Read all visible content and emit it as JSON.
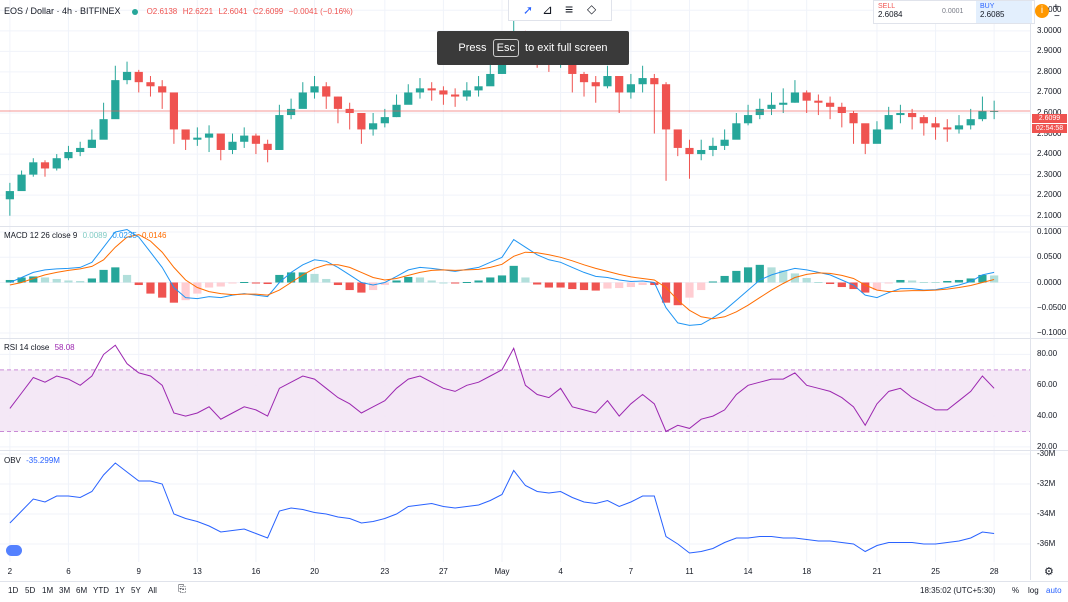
{
  "header": {
    "symbol": "EOS / Dollar · 4h · BITFINEX",
    "ohlc_o": "O2.6138",
    "ohlc_h": "H2.6221",
    "ohlc_l": "L2.6041",
    "ohlc_c": "C2.6099",
    "change": "−0.0041 (−0.16%)"
  },
  "trade_panel": {
    "sell_label": "SELL",
    "sell_price": "2.6084",
    "spread": "0.0001",
    "buy_label": "BUY",
    "buy_price": "2.6085"
  },
  "toast": {
    "before": "Press",
    "key": "Esc",
    "after": "to exit full screen"
  },
  "price_tag": {
    "price": "2.6099",
    "countdown": "02:54:58"
  },
  "indicators": {
    "macd": {
      "name": "MACD 12 26 close 9",
      "v1": "0.0089",
      "v2": "0.0235",
      "v3": "0.0146"
    },
    "rsi": {
      "name": "RSI 14 close",
      "value": "58.08"
    },
    "obv": {
      "name": "OBV",
      "value": "-35.299M"
    }
  },
  "bottom": {
    "timeframes": [
      "1D",
      "5D",
      "1M",
      "3M",
      "6M",
      "YTD",
      "1Y",
      "5Y",
      "All"
    ],
    "clock": "18:35:02 (UTC+5:30)",
    "percent": "%",
    "log": "log",
    "auto": "auto"
  },
  "colors": {
    "up": "#26a69a",
    "down": "#ef5350",
    "macd": "#2196f3",
    "signal": "#ff6d00",
    "rsi": "#9c27b0",
    "obv": "#2962ff"
  },
  "chart_data": [
    {
      "type": "candlestick",
      "title": "EOS / Dollar",
      "y_ticks": [
        "3.1000",
        "3.0000",
        "2.9000",
        "2.8000",
        "2.7000",
        "2.6000",
        "2.5000",
        "2.4000",
        "2.3000",
        "2.2000",
        "2.1000"
      ],
      "ylim": [
        2.05,
        3.15
      ],
      "x_ticks": [
        "2",
        "6",
        "9",
        "13",
        "16",
        "20",
        "23",
        "27",
        "May",
        "4",
        "7",
        "11",
        "14",
        "18",
        "21",
        "25",
        "28"
      ],
      "close": [
        2.22,
        2.3,
        2.36,
        2.33,
        2.38,
        2.41,
        2.43,
        2.47,
        2.57,
        2.76,
        2.8,
        2.75,
        2.73,
        2.7,
        2.52,
        2.47,
        2.48,
        2.5,
        2.42,
        2.46,
        2.49,
        2.45,
        2.42,
        2.59,
        2.62,
        2.7,
        2.73,
        2.68,
        2.62,
        2.6,
        2.52,
        2.55,
        2.58,
        2.64,
        2.7,
        2.72,
        2.71,
        2.69,
        2.68,
        2.71,
        2.73,
        2.79,
        2.84,
        2.96,
        2.93,
        2.88,
        2.86,
        2.9,
        2.79,
        2.75,
        2.73,
        2.78,
        2.7,
        2.74,
        2.77,
        2.74,
        2.52,
        2.43,
        2.4,
        2.42,
        2.44,
        2.47,
        2.55,
        2.59,
        2.62,
        2.64,
        2.65,
        2.7,
        2.66,
        2.65,
        2.63,
        2.6,
        2.55,
        2.45,
        2.52,
        2.59,
        2.6,
        2.58,
        2.55,
        2.53,
        2.52,
        2.54,
        2.57,
        2.61,
        2.61
      ],
      "high": [
        2.26,
        2.32,
        2.38,
        2.37,
        2.4,
        2.44,
        2.46,
        2.52,
        2.65,
        2.83,
        2.85,
        2.81,
        2.78,
        2.76,
        2.6,
        2.51,
        2.53,
        2.54,
        2.49,
        2.5,
        2.53,
        2.5,
        2.47,
        2.64,
        2.67,
        2.75,
        2.78,
        2.75,
        2.68,
        2.65,
        2.57,
        2.6,
        2.62,
        2.69,
        2.74,
        2.77,
        2.75,
        2.73,
        2.72,
        2.75,
        2.78,
        2.84,
        2.91,
        3.1,
        3.0,
        2.95,
        2.92,
        2.95,
        2.86,
        2.8,
        2.78,
        2.83,
        2.77,
        2.79,
        2.83,
        2.79,
        2.75,
        2.5,
        2.47,
        2.47,
        2.48,
        2.52,
        2.6,
        2.64,
        2.67,
        2.7,
        2.72,
        2.76,
        2.71,
        2.69,
        2.68,
        2.65,
        2.61,
        2.5,
        2.56,
        2.63,
        2.64,
        2.62,
        2.59,
        2.58,
        2.57,
        2.59,
        2.62,
        2.68,
        2.66
      ],
      "low": [
        2.1,
        2.24,
        2.29,
        2.29,
        2.32,
        2.37,
        2.39,
        2.43,
        2.52,
        2.6,
        2.74,
        2.7,
        2.68,
        2.62,
        2.45,
        2.42,
        2.44,
        2.41,
        2.37,
        2.4,
        2.43,
        2.4,
        2.36,
        2.52,
        2.57,
        2.64,
        2.67,
        2.62,
        2.55,
        2.52,
        2.45,
        2.49,
        2.53,
        2.58,
        2.65,
        2.67,
        2.66,
        2.64,
        2.63,
        2.66,
        2.68,
        2.74,
        2.79,
        2.88,
        2.86,
        2.82,
        2.8,
        2.82,
        2.7,
        2.68,
        2.65,
        2.72,
        2.6,
        2.67,
        2.7,
        2.5,
        2.27,
        2.39,
        2.28,
        2.37,
        2.39,
        2.42,
        2.5,
        2.54,
        2.57,
        2.59,
        2.6,
        2.65,
        2.6,
        2.59,
        2.57,
        2.53,
        2.45,
        2.4,
        2.46,
        2.53,
        2.55,
        2.52,
        2.49,
        2.47,
        2.46,
        2.5,
        2.52,
        2.56,
        2.57
      ]
    },
    {
      "type": "line",
      "title": "MACD 12 26 close 9",
      "y_ticks": [
        "0.1000",
        "0.0500",
        "0.0000",
        "−0.0500",
        "−0.1000"
      ],
      "ylim": [
        -0.11,
        0.11
      ],
      "series": [
        {
          "name": "MACD",
          "values": [
            0.0,
            0.01,
            0.02,
            0.025,
            0.027,
            0.028,
            0.03,
            0.04,
            0.07,
            0.1,
            0.105,
            0.09,
            0.06,
            0.03,
            -0.01,
            -0.03,
            -0.032,
            -0.028,
            -0.03,
            -0.025,
            -0.022,
            -0.025,
            -0.028,
            0.0,
            0.02,
            0.035,
            0.045,
            0.042,
            0.03,
            0.015,
            0.0,
            -0.005,
            0.0,
            0.012,
            0.025,
            0.03,
            0.028,
            0.025,
            0.022,
            0.026,
            0.03,
            0.04,
            0.05,
            0.085,
            0.07,
            0.055,
            0.045,
            0.04,
            0.03,
            0.02,
            0.012,
            0.01,
            0.005,
            0.002,
            0.003,
            0.0,
            -0.05,
            -0.08,
            -0.085,
            -0.083,
            -0.07,
            -0.055,
            -0.035,
            -0.015,
            0.005,
            0.015,
            0.022,
            0.028,
            0.025,
            0.02,
            0.015,
            0.005,
            -0.005,
            -0.025,
            -0.03,
            -0.02,
            -0.012,
            -0.012,
            -0.015,
            -0.014,
            -0.01,
            -0.005,
            0.002,
            0.015,
            0.02
          ]
        },
        {
          "name": "Signal",
          "values": [
            -0.005,
            0.0,
            0.008,
            0.015,
            0.02,
            0.024,
            0.027,
            0.032,
            0.045,
            0.07,
            0.09,
            0.095,
            0.082,
            0.06,
            0.03,
            0.005,
            -0.01,
            -0.018,
            -0.022,
            -0.024,
            -0.023,
            -0.023,
            -0.025,
            -0.015,
            0.0,
            0.015,
            0.028,
            0.035,
            0.035,
            0.03,
            0.02,
            0.01,
            0.005,
            0.008,
            0.014,
            0.02,
            0.024,
            0.025,
            0.024,
            0.025,
            0.026,
            0.03,
            0.036,
            0.052,
            0.06,
            0.059,
            0.055,
            0.05,
            0.043,
            0.035,
            0.028,
            0.022,
            0.016,
            0.011,
            0.008,
            0.005,
            -0.01,
            -0.035,
            -0.055,
            -0.068,
            -0.072,
            -0.068,
            -0.058,
            -0.045,
            -0.03,
            -0.015,
            -0.002,
            0.01,
            0.016,
            0.019,
            0.018,
            0.014,
            0.008,
            -0.005,
            -0.015,
            -0.018,
            -0.017,
            -0.016,
            -0.016,
            -0.015,
            -0.013,
            -0.01,
            -0.006,
            0.0,
            0.006
          ]
        }
      ]
    },
    {
      "type": "line",
      "title": "RSI 14 close",
      "y_ticks": [
        "80.00",
        "60.00",
        "40.00",
        "20.00"
      ],
      "ylim": [
        18,
        90
      ],
      "band": [
        30,
        70
      ],
      "series": [
        {
          "name": "RSI",
          "values": [
            45,
            55,
            65,
            62,
            66,
            64,
            60,
            66,
            80,
            86,
            74,
            68,
            66,
            60,
            42,
            40,
            42,
            46,
            38,
            42,
            46,
            44,
            40,
            58,
            62,
            66,
            64,
            58,
            52,
            48,
            42,
            46,
            50,
            58,
            64,
            66,
            62,
            58,
            56,
            60,
            62,
            66,
            70,
            84,
            60,
            54,
            52,
            58,
            46,
            44,
            42,
            50,
            40,
            48,
            54,
            48,
            30,
            34,
            32,
            38,
            40,
            44,
            54,
            60,
            62,
            64,
            64,
            68,
            60,
            58,
            56,
            52,
            46,
            34,
            48,
            56,
            58,
            52,
            48,
            44,
            44,
            50,
            56,
            66,
            58
          ]
        }
      ]
    },
    {
      "type": "line",
      "title": "OBV",
      "y_ticks": [
        "-30M",
        "-32M",
        "-34M",
        "-36M"
      ],
      "ylim": [
        -37.2,
        -29.8
      ],
      "series": [
        {
          "name": "OBV",
          "values": [
            -34.6,
            -33.8,
            -33.0,
            -33.2,
            -32.8,
            -32.8,
            -32.9,
            -32.5,
            -31.4,
            -30.6,
            -31.2,
            -31.8,
            -31.8,
            -32.0,
            -34.0,
            -34.3,
            -34.5,
            -34.8,
            -35.2,
            -35.1,
            -35.0,
            -35.3,
            -35.6,
            -33.8,
            -33.6,
            -33.7,
            -33.9,
            -34.0,
            -34.2,
            -34.3,
            -34.6,
            -34.5,
            -34.3,
            -34.0,
            -33.5,
            -33.4,
            -33.3,
            -33.5,
            -33.6,
            -33.5,
            -33.4,
            -33.1,
            -32.7,
            -31.1,
            -32.1,
            -32.5,
            -32.6,
            -32.5,
            -32.9,
            -33.2,
            -33.3,
            -33.1,
            -33.5,
            -33.2,
            -32.8,
            -32.8,
            -35.5,
            -36.0,
            -36.6,
            -36.5,
            -36.3,
            -35.9,
            -35.6,
            -35.6,
            -35.5,
            -35.5,
            -35.6,
            -35.6,
            -35.7,
            -35.8,
            -35.8,
            -35.9,
            -36.0,
            -36.5,
            -36.1,
            -35.9,
            -35.9,
            -35.9,
            -36.0,
            -36.0,
            -35.9,
            -35.8,
            -35.6,
            -35.2,
            -35.3
          ]
        }
      ]
    }
  ]
}
